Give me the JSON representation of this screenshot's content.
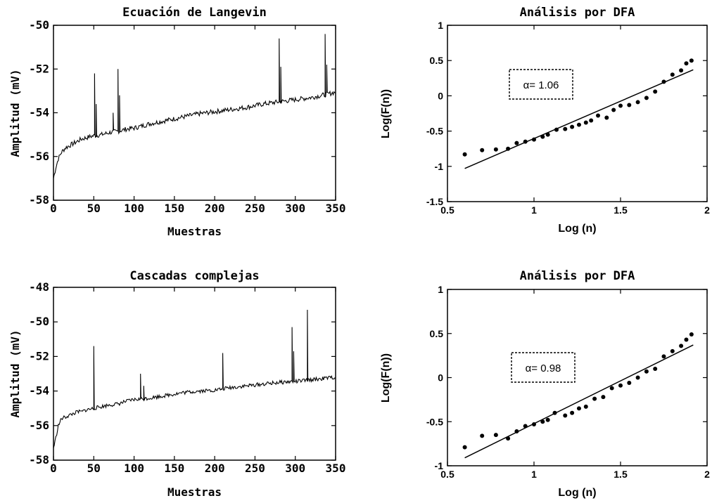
{
  "chart_data": [
    {
      "type": "line",
      "title": "Ecuación de Langevin",
      "xlabel": "Muestras",
      "ylabel": "Amplitud (mV)",
      "xlim": [
        0,
        350
      ],
      "ylim": [
        -58,
        -50
      ],
      "xticks": [
        0,
        50,
        100,
        150,
        200,
        250,
        300,
        350
      ],
      "yticks": [
        -58,
        -56,
        -54,
        -52,
        -50
      ],
      "grid": false,
      "legend": "none",
      "series": [
        {
          "x": [
            0,
            3,
            6,
            10,
            15,
            20,
            25,
            30,
            35,
            40,
            45,
            50,
            60,
            70,
            80,
            90,
            100,
            120,
            140,
            160,
            180,
            200,
            220,
            240,
            260,
            280,
            300,
            320,
            340,
            350
          ],
          "values": [
            -57.0,
            -56.5,
            -56.1,
            -55.8,
            -55.6,
            -55.5,
            -55.4,
            -55.3,
            -55.2,
            -55.15,
            -55.1,
            -55.05,
            -55.0,
            -54.9,
            -54.85,
            -54.75,
            -54.7,
            -54.5,
            -54.35,
            -54.2,
            -54.05,
            -53.95,
            -53.85,
            -53.75,
            -53.6,
            -53.5,
            -53.4,
            -53.3,
            -53.15,
            -53.05
          ]
        }
      ],
      "spikes": [
        {
          "x": 51,
          "peak": -52.2
        },
        {
          "x": 53,
          "peak": -53.6
        },
        {
          "x": 74,
          "peak": -54.0
        },
        {
          "x": 80,
          "peak": -52.0
        },
        {
          "x": 82,
          "peak": -53.2
        },
        {
          "x": 280,
          "peak": -50.6
        },
        {
          "x": 282,
          "peak": -51.9
        },
        {
          "x": 337,
          "peak": -50.4
        },
        {
          "x": 339,
          "peak": -51.8
        }
      ]
    },
    {
      "type": "scatter",
      "title": "Análisis por DFA",
      "xlabel": "Log (n)",
      "ylabel": "Log(F(n))",
      "xlim": [
        0.5,
        2
      ],
      "ylim": [
        -1.5,
        1
      ],
      "xticks": [
        0.5,
        1,
        1.5,
        2
      ],
      "xtick_labels": [
        "0.5",
        "1",
        "1.5",
        "2"
      ],
      "yticks": [
        -1.5,
        -1,
        -0.5,
        0,
        0.5,
        1
      ],
      "ytick_labels": [
        "-1.5",
        "-1",
        "-0.5",
        "0",
        "0.5",
        "1"
      ],
      "grid": false,
      "annotation": "α= 1.06",
      "points": {
        "x": [
          0.6,
          0.7,
          0.78,
          0.85,
          0.9,
          0.95,
          1.0,
          1.05,
          1.08,
          1.13,
          1.18,
          1.22,
          1.26,
          1.3,
          1.33,
          1.37,
          1.42,
          1.46,
          1.5,
          1.55,
          1.6,
          1.65,
          1.7,
          1.75,
          1.8,
          1.85,
          1.88,
          1.91
        ],
        "y": [
          -0.83,
          -0.77,
          -0.76,
          -0.75,
          -0.67,
          -0.65,
          -0.62,
          -0.58,
          -0.55,
          -0.48,
          -0.47,
          -0.44,
          -0.41,
          -0.38,
          -0.35,
          -0.28,
          -0.31,
          -0.2,
          -0.14,
          -0.13,
          -0.09,
          -0.03,
          0.06,
          0.2,
          0.3,
          0.36,
          0.46,
          0.5
        ]
      },
      "fit": {
        "x": [
          0.6,
          1.92
        ],
        "y": [
          -1.03,
          0.37
        ]
      }
    },
    {
      "type": "line",
      "title": "Cascadas complejas",
      "xlabel": "Muestras",
      "ylabel": "Amplitud (mV)",
      "xlim": [
        0,
        350
      ],
      "ylim": [
        -58,
        -48
      ],
      "xticks": [
        0,
        50,
        100,
        150,
        200,
        250,
        300,
        350
      ],
      "yticks": [
        -58,
        -56,
        -54,
        -52,
        -50,
        -48
      ],
      "grid": false,
      "legend": "none",
      "series": [
        {
          "x": [
            0,
            3,
            6,
            10,
            15,
            20,
            25,
            30,
            35,
            40,
            45,
            50,
            60,
            70,
            80,
            90,
            100,
            120,
            140,
            160,
            180,
            200,
            220,
            240,
            260,
            280,
            300,
            320,
            340,
            350
          ],
          "values": [
            -57.3,
            -56.7,
            -56.0,
            -55.6,
            -55.5,
            -55.4,
            -55.3,
            -55.2,
            -55.2,
            -55.1,
            -55.05,
            -55.0,
            -54.9,
            -54.8,
            -54.75,
            -54.6,
            -54.5,
            -54.4,
            -54.25,
            -54.1,
            -54.0,
            -53.95,
            -53.8,
            -53.7,
            -53.6,
            -53.5,
            -53.45,
            -53.35,
            -53.25,
            -53.2
          ]
        }
      ],
      "spikes": [
        {
          "x": 50,
          "peak": -51.4
        },
        {
          "x": 108,
          "peak": -53.0
        },
        {
          "x": 112,
          "peak": -53.7
        },
        {
          "x": 210,
          "peak": -51.8
        },
        {
          "x": 296,
          "peak": -50.3
        },
        {
          "x": 298,
          "peak": -51.7
        },
        {
          "x": 315,
          "peak": -49.3
        }
      ]
    },
    {
      "type": "scatter",
      "title": "Análisis por DFA",
      "xlabel": "Log (n)",
      "ylabel": "Log(F(n))",
      "xlim": [
        0.5,
        2
      ],
      "ylim": [
        -1,
        1
      ],
      "xticks": [
        0.5,
        1,
        1.5,
        2
      ],
      "xtick_labels": [
        "0.5",
        "1",
        "1.5",
        "2"
      ],
      "yticks": [
        -1,
        -0.5,
        0,
        0.5,
        1
      ],
      "ytick_labels": [
        "-1",
        "-0.5",
        "0",
        "0.5",
        "1"
      ],
      "grid": false,
      "annotation": "α= 0.98",
      "points": {
        "x": [
          0.6,
          0.7,
          0.78,
          0.85,
          0.9,
          0.95,
          1.0,
          1.05,
          1.08,
          1.12,
          1.18,
          1.22,
          1.26,
          1.3,
          1.35,
          1.4,
          1.45,
          1.5,
          1.55,
          1.6,
          1.65,
          1.7,
          1.75,
          1.8,
          1.85,
          1.88,
          1.91
        ],
        "y": [
          -0.79,
          -0.66,
          -0.65,
          -0.69,
          -0.61,
          -0.55,
          -0.53,
          -0.5,
          -0.48,
          -0.4,
          -0.43,
          -0.4,
          -0.35,
          -0.33,
          -0.24,
          -0.22,
          -0.12,
          -0.09,
          -0.06,
          0.0,
          0.07,
          0.1,
          0.24,
          0.3,
          0.36,
          0.43,
          0.49
        ]
      },
      "fit": {
        "x": [
          0.6,
          1.92
        ],
        "y": [
          -0.91,
          0.37
        ]
      }
    }
  ]
}
